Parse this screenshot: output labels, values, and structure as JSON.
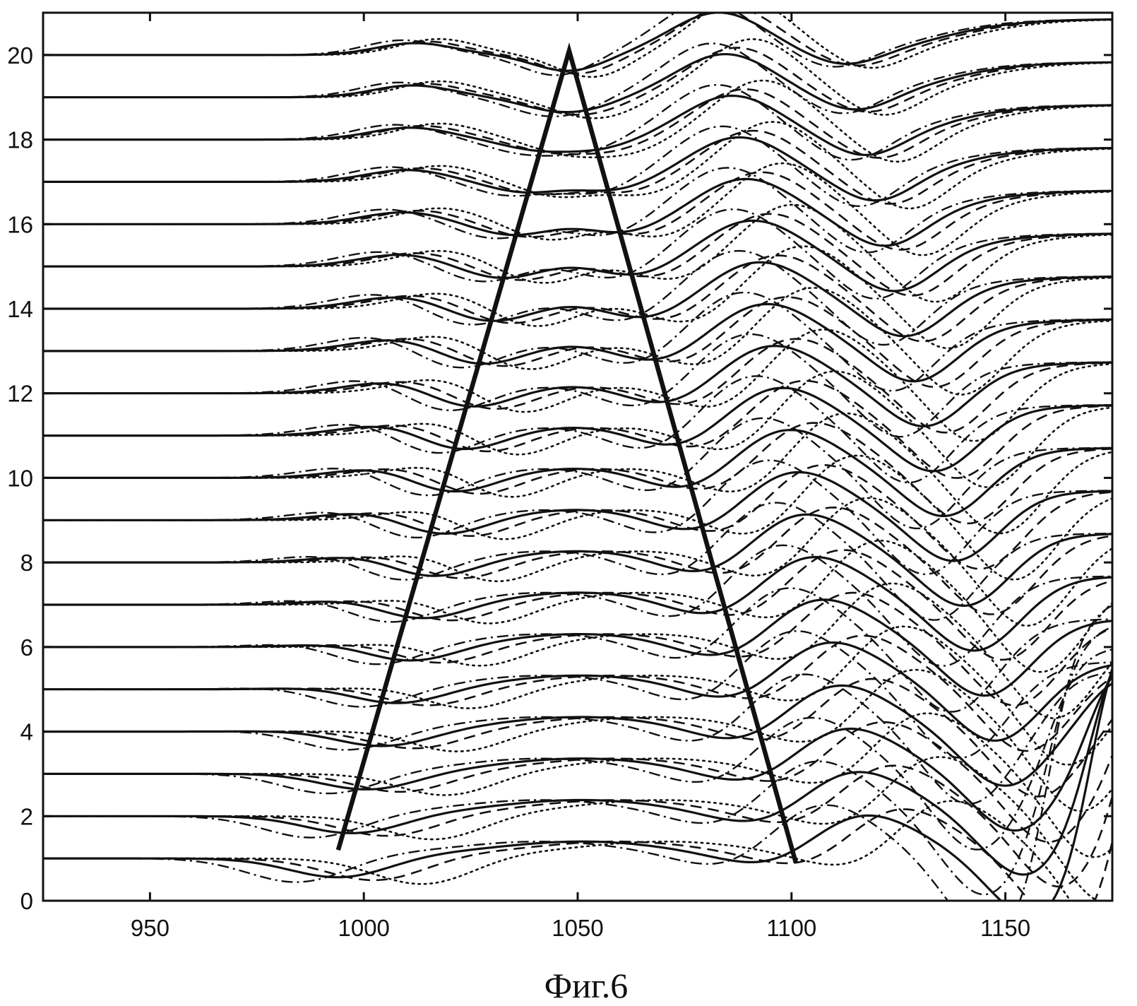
{
  "caption": "Фиг.6",
  "chart_data": {
    "type": "line",
    "title": "",
    "xlabel": "",
    "ylabel": "",
    "xlim": [
      925,
      1175
    ],
    "ylim": [
      0,
      21
    ],
    "x_ticks": [
      950,
      1000,
      1050,
      1100,
      1150
    ],
    "y_ticks": [
      0,
      2,
      4,
      6,
      8,
      10,
      12,
      14,
      16,
      18,
      20
    ],
    "grid": false,
    "legend": "none",
    "colors": {
      "ink": "#111111",
      "background": "#ffffff"
    },
    "trace_offsets": [
      1,
      2,
      3,
      4,
      5,
      6,
      7,
      8,
      9,
      10,
      11,
      12,
      13,
      14,
      15,
      16,
      17,
      18,
      19,
      20
    ],
    "line_styles": [
      "solid",
      "dashed",
      "dotted",
      "dashdot"
    ],
    "overlay_triangle": [
      [
        994,
        1.2
      ],
      [
        1048,
        20.1
      ],
      [
        1101,
        0.9
      ]
    ]
  }
}
